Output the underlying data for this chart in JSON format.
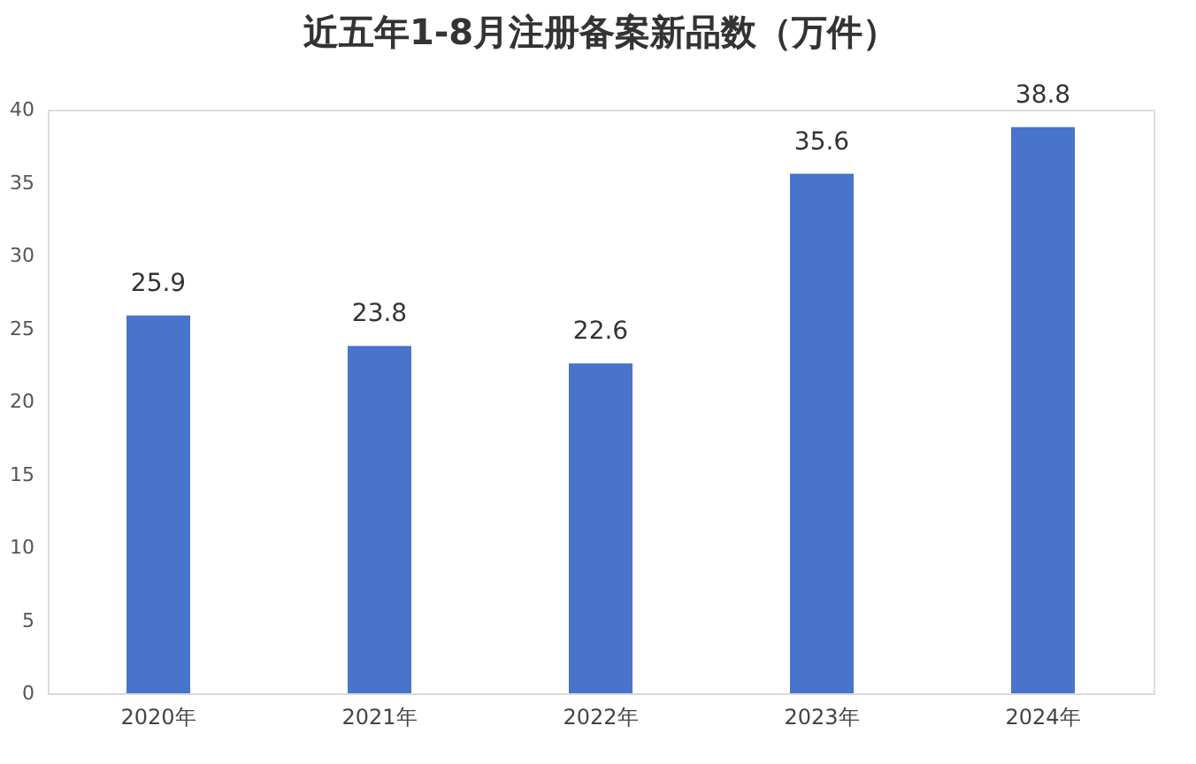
{
  "chart_data": {
    "type": "bar",
    "title": "近五年1-8月注册备案新品数（万件）",
    "categories": [
      "2020年",
      "2021年",
      "2022年",
      "2023年",
      "2024年"
    ],
    "values": [
      25.9,
      23.8,
      22.6,
      35.6,
      38.8
    ],
    "color": "#4874cb",
    "ylim": [
      0,
      40
    ],
    "yticks": [
      0,
      5,
      10,
      15,
      20,
      25,
      30,
      35,
      40
    ],
    "grid": false,
    "data_labels": true
  }
}
